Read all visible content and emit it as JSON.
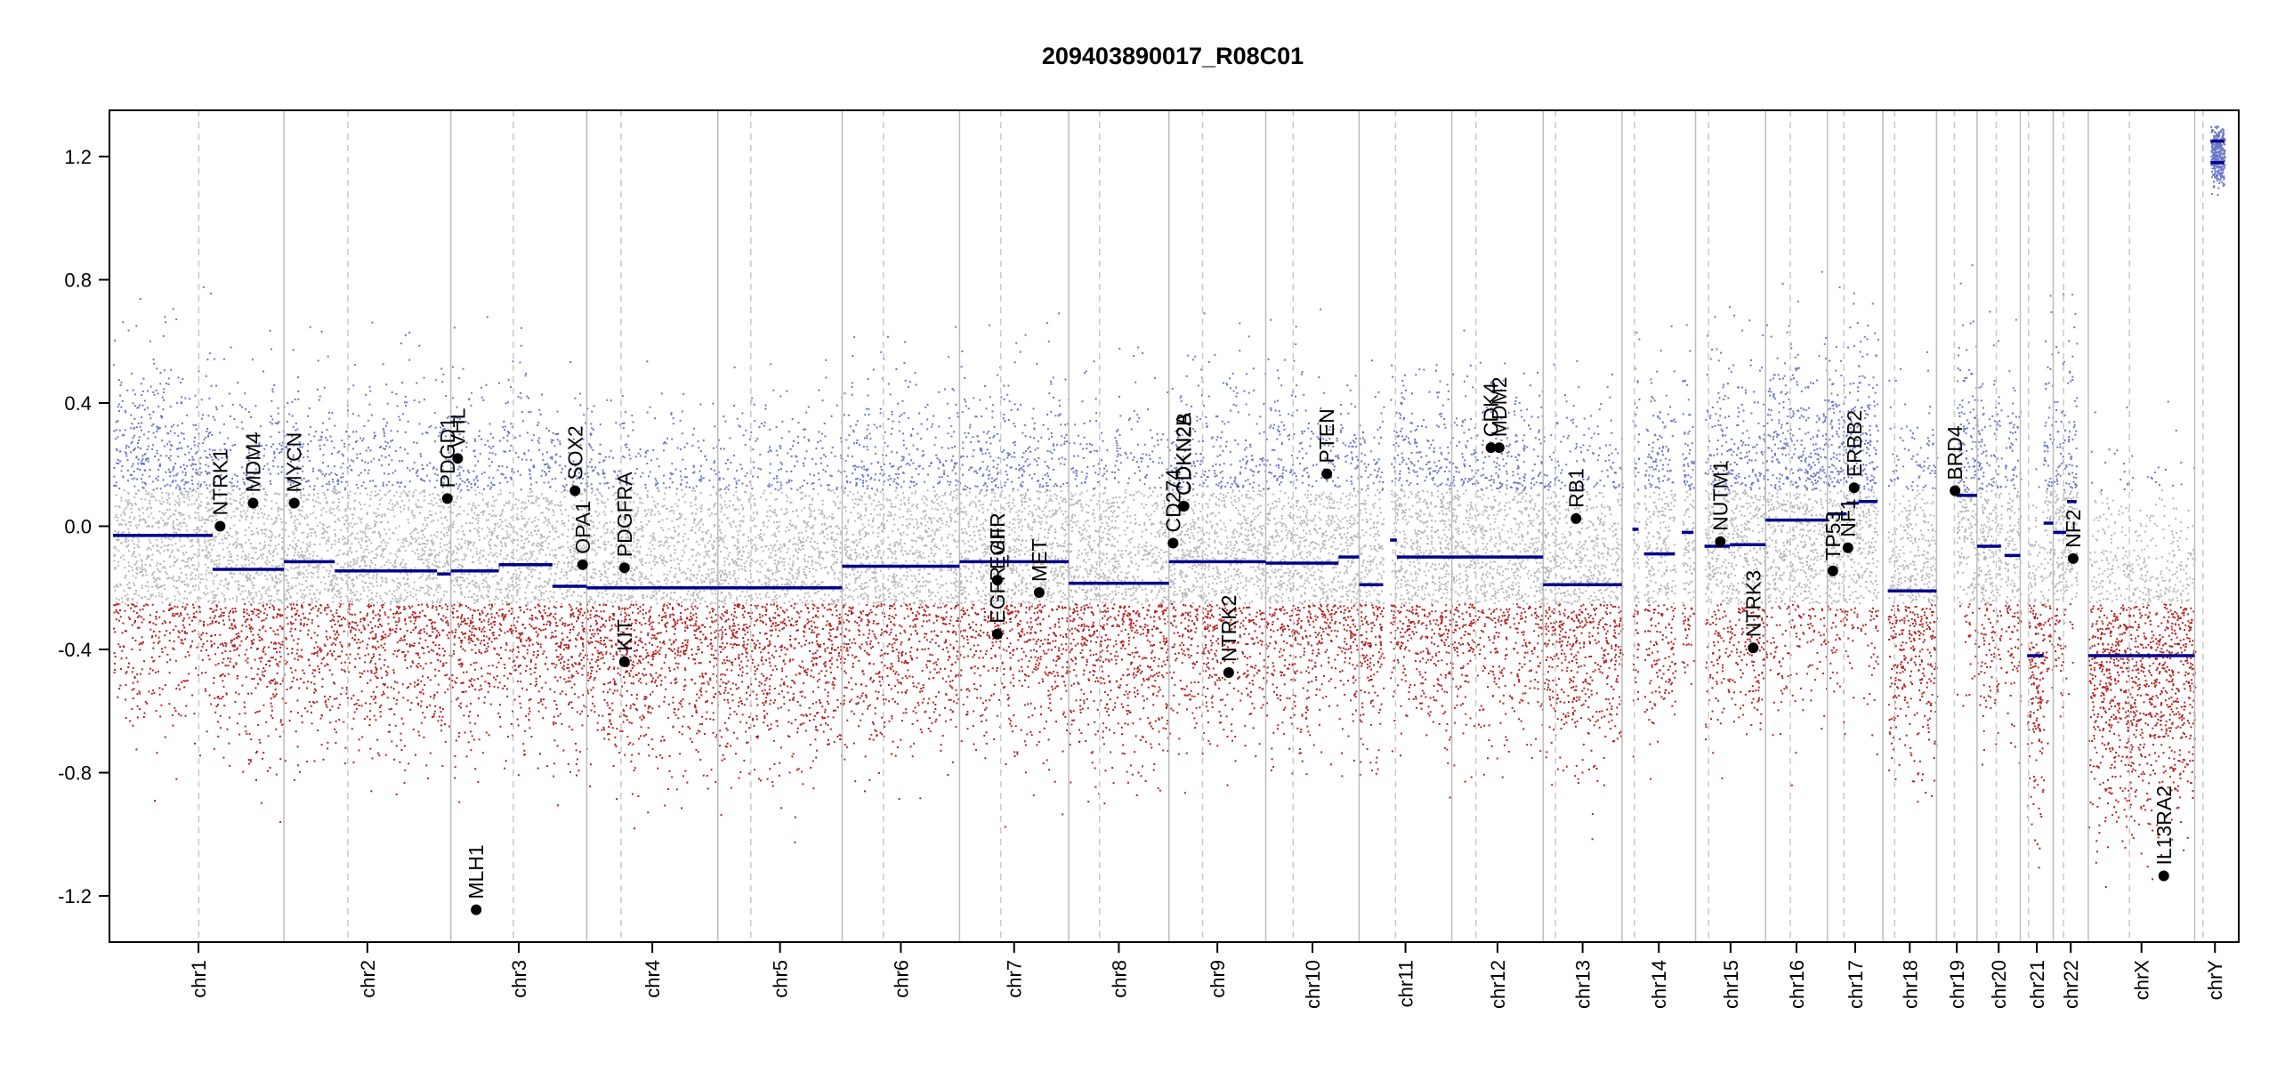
{
  "chart_data": {
    "type": "scatter",
    "title": "209403890017_R08C01",
    "xlabel": "",
    "ylabel": "",
    "ylim": [
      -1.35,
      1.35
    ],
    "yticks": [
      -1.2,
      -0.8,
      -0.4,
      0.0,
      0.4,
      0.8,
      1.2
    ],
    "ytick_labels": [
      "-1.2",
      "-0.8",
      "-0.4",
      "0.0",
      "0.4",
      "0.8",
      "1.2"
    ],
    "grid": false,
    "colors": {
      "gain_probe": "#6b78c8",
      "neutral_probe": "#b8b8b8",
      "loss_probe": "#b22222",
      "segment": "#00008b",
      "boundary": "#bdbdbd",
      "centromere": "#c8c8c8",
      "gene": "#000000"
    },
    "chromosomes": [
      {
        "name": "chr1",
        "start": 0,
        "length": 249,
        "centromere": 125
      },
      {
        "name": "chr2",
        "start": 249,
        "length": 243,
        "centromere": 93
      },
      {
        "name": "chr3",
        "start": 492,
        "length": 198,
        "centromere": 91
      },
      {
        "name": "chr4",
        "start": 690,
        "length": 191,
        "centromere": 50
      },
      {
        "name": "chr5",
        "start": 881,
        "length": 181,
        "centromere": 48
      },
      {
        "name": "chr6",
        "start": 1062,
        "length": 171,
        "centromere": 60
      },
      {
        "name": "chr7",
        "start": 1233,
        "length": 159,
        "centromere": 60
      },
      {
        "name": "chr8",
        "start": 1392,
        "length": 146,
        "centromere": 45
      },
      {
        "name": "chr9",
        "start": 1538,
        "length": 141,
        "centromere": 49
      },
      {
        "name": "chr10",
        "start": 1679,
        "length": 136,
        "centromere": 40
      },
      {
        "name": "chr11",
        "start": 1815,
        "length": 135,
        "centromere": 53
      },
      {
        "name": "chr12",
        "start": 1950,
        "length": 133,
        "centromere": 35
      },
      {
        "name": "chr13",
        "start": 2083,
        "length": 115,
        "centromere": 18
      },
      {
        "name": "chr14",
        "start": 2198,
        "length": 107,
        "centromere": 18
      },
      {
        "name": "chr15",
        "start": 2305,
        "length": 102,
        "centromere": 19
      },
      {
        "name": "chr16",
        "start": 2407,
        "length": 90,
        "centromere": 36
      },
      {
        "name": "chr17",
        "start": 2497,
        "length": 81,
        "centromere": 24
      },
      {
        "name": "chr18",
        "start": 2578,
        "length": 78,
        "centromere": 17
      },
      {
        "name": "chr19",
        "start": 2656,
        "length": 59,
        "centromere": 26
      },
      {
        "name": "chr20",
        "start": 2715,
        "length": 63,
        "centromere": 28
      },
      {
        "name": "chr21",
        "start": 2778,
        "length": 48,
        "centromere": 12
      },
      {
        "name": "chr22",
        "start": 2826,
        "length": 51,
        "centromere": 15
      },
      {
        "name": "chrX",
        "start": 2877,
        "length": 155,
        "centromere": 60
      },
      {
        "name": "chrY",
        "start": 3032,
        "length": 59,
        "centromere": 12
      }
    ],
    "x_total": 3091,
    "segments": [
      {
        "chr": "chr1",
        "x0": 0,
        "x1": 145,
        "y": -0.03
      },
      {
        "chr": "chr1",
        "x0": 145,
        "x1": 249,
        "y": -0.14
      },
      {
        "chr": "chr2",
        "x0": 249,
        "x1": 323,
        "y": -0.115
      },
      {
        "chr": "chr2",
        "x0": 323,
        "x1": 472,
        "y": -0.145
      },
      {
        "chr": "chr2",
        "x0": 472,
        "x1": 492,
        "y": -0.155
      },
      {
        "chr": "chr3",
        "x0": 492,
        "x1": 562,
        "y": -0.145
      },
      {
        "chr": "chr3",
        "x0": 562,
        "x1": 640,
        "y": -0.125
      },
      {
        "chr": "chr3",
        "x0": 640,
        "x1": 690,
        "y": -0.195
      },
      {
        "chr": "chr4",
        "x0": 690,
        "x1": 881,
        "y": -0.2
      },
      {
        "chr": "chr5",
        "x0": 881,
        "x1": 1062,
        "y": -0.2
      },
      {
        "chr": "chr6",
        "x0": 1062,
        "x1": 1233,
        "y": -0.13
      },
      {
        "chr": "chr7",
        "x0": 1233,
        "x1": 1392,
        "y": -0.115
      },
      {
        "chr": "chr8",
        "x0": 1392,
        "x1": 1538,
        "y": -0.185
      },
      {
        "chr": "chr9",
        "x0": 1538,
        "x1": 1679,
        "y": -0.115
      },
      {
        "chr": "chr10",
        "x0": 1679,
        "x1": 1785,
        "y": -0.12
      },
      {
        "chr": "chr10",
        "x0": 1785,
        "x1": 1815,
        "y": -0.1
      },
      {
        "chr": "chr11",
        "x0": 1815,
        "x1": 1850,
        "y": -0.19
      },
      {
        "chr": "chr11",
        "x0": 1860,
        "x1": 1870,
        "y": -0.045
      },
      {
        "chr": "chr11",
        "x0": 1870,
        "x1": 2083,
        "y": -0.1
      },
      {
        "chr": "chr13",
        "x0": 2083,
        "x1": 2198,
        "y": -0.19
      },
      {
        "chr": "chr14",
        "x0": 2213,
        "x1": 2222,
        "y": -0.01
      },
      {
        "chr": "chr14",
        "x0": 2230,
        "x1": 2275,
        "y": -0.09
      },
      {
        "chr": "chr14",
        "x0": 2285,
        "x1": 2302,
        "y": -0.02
      },
      {
        "chr": "chr15",
        "x0": 2318,
        "x1": 2355,
        "y": -0.065
      },
      {
        "chr": "chr15",
        "x0": 2355,
        "x1": 2407,
        "y": -0.06
      },
      {
        "chr": "chr16",
        "x0": 2407,
        "x1": 2497,
        "y": 0.02
      },
      {
        "chr": "chr17",
        "x0": 2497,
        "x1": 2525,
        "y": 0.04
      },
      {
        "chr": "chr17",
        "x0": 2525,
        "x1": 2543,
        "y": 0.075
      },
      {
        "chr": "chr17",
        "x0": 2543,
        "x1": 2570,
        "y": 0.08
      },
      {
        "chr": "chr18",
        "x0": 2585,
        "x1": 2656,
        "y": -0.21
      },
      {
        "chr": "chr19",
        "x0": 2685,
        "x1": 2715,
        "y": 0.1
      },
      {
        "chr": "chr20",
        "x0": 2715,
        "x1": 2750,
        "y": -0.065
      },
      {
        "chr": "chr20",
        "x0": 2755,
        "x1": 2778,
        "y": -0.095
      },
      {
        "chr": "chr21",
        "x0": 2788,
        "x1": 2812,
        "y": -0.42
      },
      {
        "chr": "chr21",
        "x0": 2812,
        "x1": 2826,
        "y": 0.01
      },
      {
        "chr": "chr22",
        "x0": 2826,
        "x1": 2845,
        "y": -0.02
      },
      {
        "chr": "chr22",
        "x0": 2846,
        "x1": 2860,
        "y": 0.08
      },
      {
        "chr": "chrX",
        "x0": 2877,
        "x1": 3032,
        "y": -0.42
      },
      {
        "chr": "chrY",
        "x0": 3055,
        "x1": 3075,
        "y": 1.18
      },
      {
        "chr": "chrY",
        "x0": 3055,
        "x1": 3075,
        "y": 1.25
      }
    ],
    "genes": [
      {
        "name": "NTRK1",
        "x": 156,
        "y": 0.0
      },
      {
        "name": "MDM4",
        "x": 204,
        "y": 0.075
      },
      {
        "name": "MYCN",
        "x": 264,
        "y": 0.075
      },
      {
        "name": "PDGD1",
        "x": 487,
        "y": 0.09
      },
      {
        "name": "VHL",
        "x": 502,
        "y": 0.22
      },
      {
        "name": "MLH1",
        "x": 529,
        "y": -1.245
      },
      {
        "name": "SOX2",
        "x": 673,
        "y": 0.115
      },
      {
        "name": "OPA1",
        "x": 684,
        "y": -0.125
      },
      {
        "name": "KIT",
        "x": 745,
        "y": -0.44
      },
      {
        "name": "PDGFRA",
        "x": 745,
        "y": -0.135
      },
      {
        "name": "EGFR_vIII",
        "x": 1288,
        "y": -0.35
      },
      {
        "name": "EGFR",
        "x": 1288,
        "y": -0.175
      },
      {
        "name": "MET",
        "x": 1349,
        "y": -0.215
      },
      {
        "name": "CD274",
        "x": 1544,
        "y": -0.055
      },
      {
        "name": "CDKN2A",
        "x": 1559,
        "y": 0.065
      },
      {
        "name": "CDKN2B",
        "x": 1560,
        "y": 0.065
      },
      {
        "name": "NTRK2",
        "x": 1625,
        "y": -0.475
      },
      {
        "name": "PTEN",
        "x": 1768,
        "y": 0.17
      },
      {
        "name": "CDK4",
        "x": 2007,
        "y": 0.255
      },
      {
        "name": "MDM2",
        "x": 2019,
        "y": 0.255
      },
      {
        "name": "RB1",
        "x": 2131,
        "y": 0.025
      },
      {
        "name": "NUTM1",
        "x": 2341,
        "y": -0.05
      },
      {
        "name": "NTRK3",
        "x": 2389,
        "y": -0.395
      },
      {
        "name": "TP53",
        "x": 2505,
        "y": -0.145
      },
      {
        "name": "NF1",
        "x": 2527,
        "y": -0.07
      },
      {
        "name": "ERBB2",
        "x": 2536,
        "y": 0.125
      },
      {
        "name": "BRD4",
        "x": 2683,
        "y": 0.115
      },
      {
        "name": "NF2",
        "x": 2855,
        "y": -0.105
      },
      {
        "name": "IL13RA2",
        "x": 2987,
        "y": -1.135
      }
    ]
  }
}
